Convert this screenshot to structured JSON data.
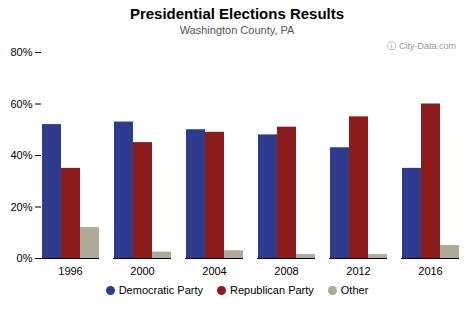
{
  "chart_data": {
    "type": "bar",
    "title": "Presidential Elections Results",
    "subtitle": "Washington County, PA",
    "annotations": [
      "ⓘ City-Data.com"
    ],
    "categories": [
      "1996",
      "2000",
      "2004",
      "2008",
      "2012",
      "2016"
    ],
    "series": [
      {
        "name": "Democratic Party",
        "color": "#2e3a8c",
        "values": [
          52,
          53,
          50,
          48,
          43,
          35
        ]
      },
      {
        "name": "Republican Party",
        "color": "#8b1a1a",
        "values": [
          35,
          45,
          49,
          51,
          55,
          60
        ]
      },
      {
        "name": "Other",
        "color": "#b0a898",
        "values": [
          12,
          2.5,
          3,
          1.5,
          1.5,
          5
        ]
      }
    ],
    "ylim": [
      0,
      80
    ],
    "yticks": [
      {
        "value": 0,
        "label": "0%"
      },
      {
        "value": 20,
        "label": "20%"
      },
      {
        "value": 40,
        "label": "40%"
      },
      {
        "value": 60,
        "label": "60%"
      },
      {
        "value": 80,
        "label": "80%"
      }
    ],
    "grid": false,
    "legend": "bottom"
  }
}
